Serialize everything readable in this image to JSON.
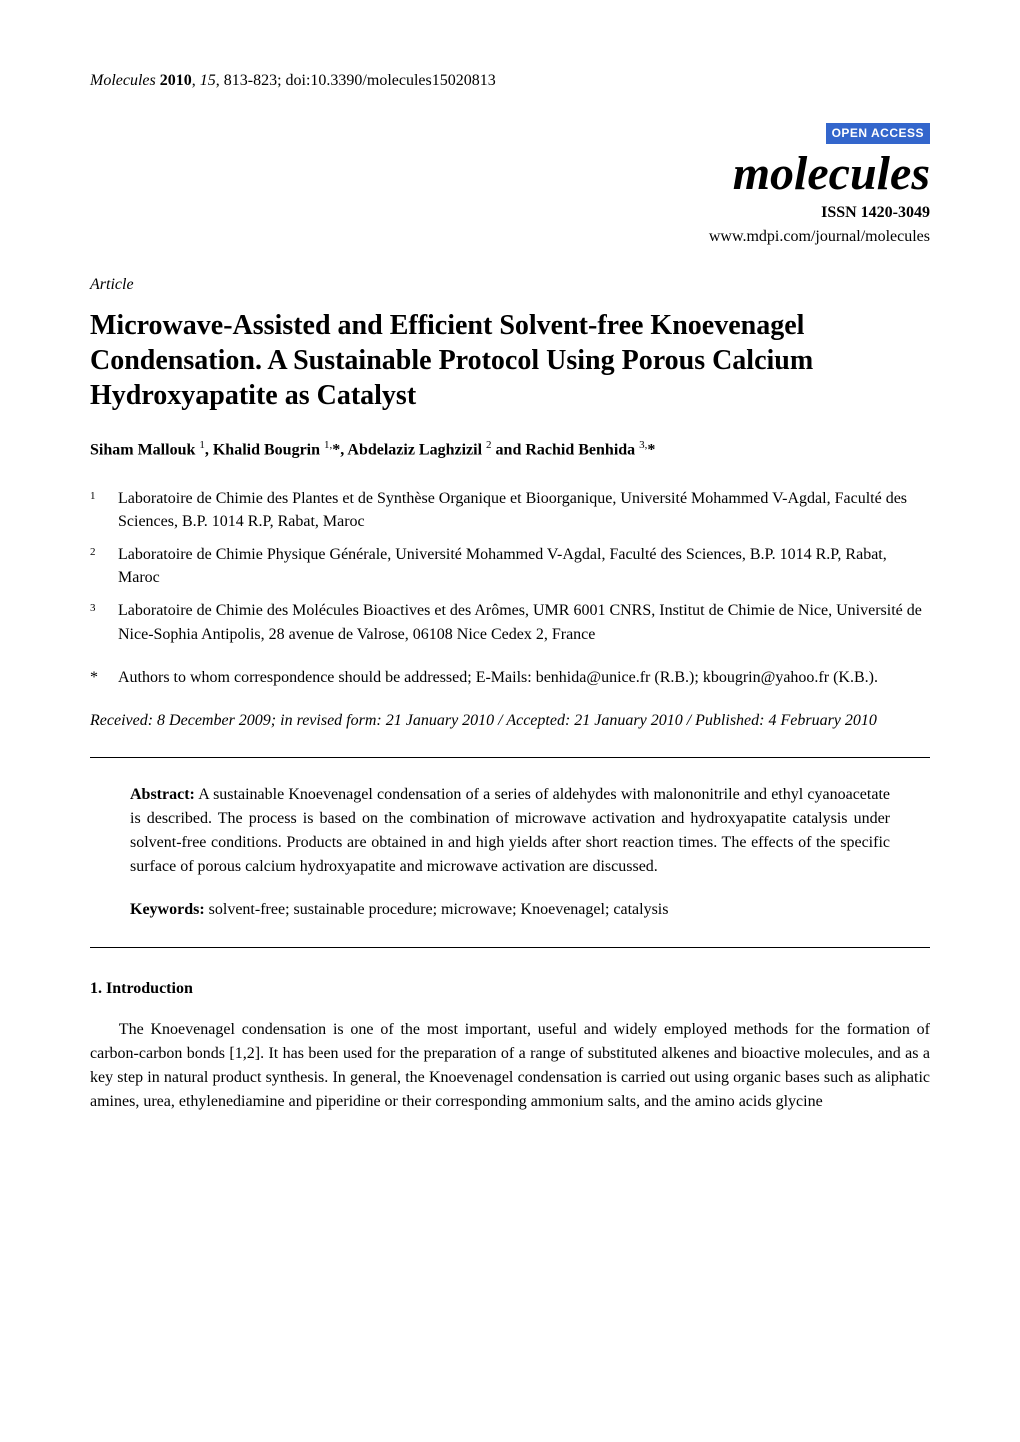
{
  "header": {
    "journal_abbrev": "Molecules",
    "year": "2010",
    "volume": "15",
    "pages": "813-823",
    "doi": "doi:10.3390/molecules15020813"
  },
  "branding": {
    "open_access": "OPEN ACCESS",
    "journal_title": "molecules",
    "issn": "ISSN 1420-3049",
    "url": "www.mdpi.com/journal/molecules"
  },
  "article_type": "Article",
  "title": "Microwave-Assisted and Efficient Solvent-free Knoevenagel Condensation. A Sustainable Protocol Using Porous Calcium Hydroxyapatite as Catalyst",
  "authors_html": "Siham Mallouk <sup>1</sup>, Khalid Bougrin <sup>1,</sup>*, Abdelaziz Laghzizil <sup>2</sup> and Rachid Benhida <sup>3,</sup>*",
  "affiliations": [
    {
      "num": "1",
      "text": "Laboratoire de Chimie des Plantes et de Synthèse Organique et Bioorganique, Université Mohammed V-Agdal, Faculté des Sciences, B.P. 1014 R.P, Rabat, Maroc"
    },
    {
      "num": "2",
      "text": "Laboratoire de Chimie Physique Générale, Université Mohammed V-Agdal, Faculté des Sciences, B.P. 1014 R.P, Rabat, Maroc"
    },
    {
      "num": "3",
      "text": "Laboratoire de Chimie des Molécules Bioactives et des Arômes, UMR 6001 CNRS, Institut de Chimie de Nice, Université de Nice-Sophia Antipolis, 28 avenue de Valrose, 06108 Nice Cedex 2, France"
    }
  ],
  "correspondence": {
    "mark": "*",
    "text": "Authors to whom correspondence should be addressed; E-Mails: benhida@unice.fr (R.B.); kbougrin@yahoo.fr (K.B.)."
  },
  "dates": "Received: 8 December 2009; in revised form: 21 January 2010 / Accepted: 21 January 2010 / Published: 4 February 2010",
  "abstract": {
    "label": "Abstract:",
    "text": "A sustainable Knoevenagel condensation of a series of aldehydes with malononitrile and ethyl cyanoacetate is described. The process is based on the combination of microwave activation and hydroxyapatite catalysis under solvent-free conditions. Products are obtained in and high yields after short reaction times. The effects of the specific surface of porous calcium hydroxyapatite and microwave activation are discussed."
  },
  "keywords": {
    "label": "Keywords:",
    "text": "solvent-free; sustainable procedure; microwave; Knoevenagel; catalysis"
  },
  "section1": {
    "heading": "1. Introduction",
    "para1": "The Knoevenagel condensation is one of the most important, useful and widely employed methods for the formation of carbon-carbon bonds [1,2]. It has been used for the preparation of a range of substituted alkenes and bioactive molecules, and as a key step in natural product synthesis. In general, the Knoevenagel condensation is carried out using organic bases such as aliphatic amines, urea, ethylenediamine and piperidine or their corresponding ammonium salts, and the amino acids glycine"
  },
  "colors": {
    "open_access_bg": "#3366cc",
    "text": "#000000",
    "background": "#ffffff"
  }
}
